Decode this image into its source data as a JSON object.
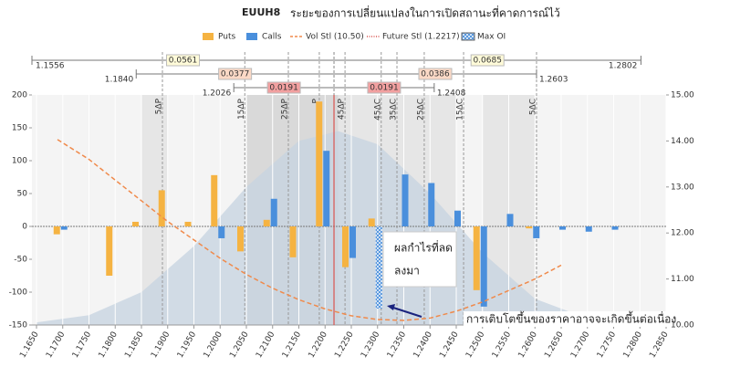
{
  "chart_data": {
    "type": "bar",
    "title": "EUUH8",
    "subtitle": "ระยะของการเปลี่ยนแปลงในการเปิดสถานะที่คาดการณ์ไว้",
    "x": [
      1.17,
      1.175,
      1.18,
      1.185,
      1.19,
      1.195,
      1.2,
      1.205,
      1.21,
      1.215,
      1.22,
      1.225,
      1.23,
      1.235,
      1.24,
      1.245,
      1.25,
      1.255,
      1.26,
      1.265,
      1.27,
      1.275
    ],
    "series": [
      {
        "name": "Puts",
        "color": "#f5b342",
        "values": [
          -12,
          null,
          -75,
          7,
          55,
          7,
          78,
          -38,
          10,
          -47,
          190,
          -62,
          12,
          null,
          null,
          null,
          -97,
          null,
          -3,
          null,
          null,
          null
        ]
      },
      {
        "name": "Calls",
        "color": "#4a8fdc",
        "values": [
          -5,
          null,
          null,
          null,
          null,
          null,
          -18,
          null,
          42,
          null,
          115,
          -48,
          -125,
          79,
          66,
          24,
          -122,
          19,
          -18,
          -5,
          -8,
          -5
        ]
      }
    ],
    "max_oi": {
      "name": "Max OI",
      "series": 1,
      "index": 12
    },
    "vol_line": {
      "name": "Vol Stl (10.50)",
      "color": "#f08a4b",
      "axis": "y2",
      "x": [
        1.169,
        1.175,
        1.18,
        1.185,
        1.19,
        1.195,
        1.2,
        1.205,
        1.21,
        1.215,
        1.22,
        1.225,
        1.23,
        1.235,
        1.24,
        1.245,
        1.25,
        1.255,
        1.26,
        1.265
      ],
      "values": [
        14.03,
        13.6,
        13.15,
        12.7,
        12.25,
        11.85,
        11.45,
        11.1,
        10.8,
        10.55,
        10.35,
        10.2,
        10.12,
        10.1,
        10.15,
        10.3,
        10.5,
        10.75,
        11.0,
        11.3
      ]
    },
    "future_line": {
      "name": "Future Stl (1.2217)",
      "value": 1.2217,
      "color": "#d9534f"
    },
    "distribution": {
      "color": "#c5d3e0",
      "x": [
        1.165,
        1.175,
        1.185,
        1.195,
        1.205,
        1.215,
        1.2225,
        1.23,
        1.24,
        1.25,
        1.26,
        1.27,
        1.28,
        1.285
      ],
      "values": [
        -146,
        -135,
        -100,
        -30,
        60,
        130,
        145,
        125,
        50,
        -40,
        -110,
        -140,
        -148,
        -150
      ]
    },
    "bands": [
      [
        1.185,
        1.19
      ],
      [
        1.205,
        1.2225
      ],
      [
        1.2225,
        1.245
      ],
      [
        1.25,
        1.26
      ]
    ],
    "delta_markers": [
      {
        "value": 1.189,
        "label": "5ΔP"
      },
      {
        "value": 1.2047,
        "label": "15ΔP"
      },
      {
        "value": 1.213,
        "label": "25ΔP"
      },
      {
        "value": 1.2189,
        "label": "P"
      },
      {
        "value": 1.2238,
        "label": "45ΔP"
      },
      {
        "value": 1.2307,
        "label": "45ΔC"
      },
      {
        "value": 1.2337,
        "label": "35ΔC"
      },
      {
        "value": 1.2389,
        "label": "25ΔC"
      },
      {
        "value": 1.2464,
        "label": "15ΔC"
      },
      {
        "value": 1.2603,
        "label": "5ΔC"
      }
    ],
    "ranges": [
      {
        "low": 1.1556,
        "low_width": 0.0561,
        "high_width": 0.0685,
        "high": 1.2802,
        "color": "#fffbd9"
      },
      {
        "low": {
          "value": 1.184,
          "label": "1.1840"
        },
        "low_width": 0.0377,
        "high_width": 0.0386,
        "high": 1.2603,
        "color": "#fbd9c6"
      },
      {
        "low": 1.2026,
        "low_width": 0.0191,
        "high_width": 0.0191,
        "high": 1.2408,
        "color": "#f2a0a0"
      }
    ],
    "annotations": [
      {
        "lines": [
          "ผลกำไรที่ลด",
          "ลงมา"
        ]
      },
      {
        "text": "การเติบโตขึ้นของราคาอาจจะเกิดขึ้นต่อเนื่อง"
      }
    ],
    "xlim": [
      1.165,
      1.285
    ],
    "xticks": [
      {
        "value": 1.165,
        "label": "1.1650"
      },
      {
        "value": 1.17,
        "label": "1.1700"
      },
      {
        "value": 1.175,
        "label": "1.1750"
      },
      {
        "value": 1.18,
        "label": "1.1800"
      },
      {
        "value": 1.185,
        "label": "1.1850"
      },
      {
        "value": 1.19,
        "label": "1.1900"
      },
      {
        "value": 1.195,
        "label": "1.1950"
      },
      {
        "value": 1.2,
        "label": "1.2000"
      },
      {
        "value": 1.205,
        "label": "1.2050"
      },
      {
        "value": 1.21,
        "label": "1.2100"
      },
      {
        "value": 1.215,
        "label": "1.2150"
      },
      {
        "value": 1.22,
        "label": "1.2200"
      },
      {
        "value": 1.225,
        "label": "1.2250"
      },
      {
        "value": 1.23,
        "label": "1.2300"
      },
      {
        "value": 1.235,
        "label": "1.2350"
      },
      {
        "value": 1.24,
        "label": "1.2400"
      },
      {
        "value": 1.245,
        "label": "1.2450"
      },
      {
        "value": 1.25,
        "label": "1.2500"
      },
      {
        "value": 1.255,
        "label": "1.2550"
      },
      {
        "value": 1.26,
        "label": "1.2600"
      },
      {
        "value": 1.265,
        "label": "1.2650"
      },
      {
        "value": 1.27,
        "label": "1.2700"
      },
      {
        "value": 1.275,
        "label": "1.2750"
      },
      {
        "value": 1.28,
        "label": "1.2800"
      },
      {
        "value": 1.285,
        "label": "1.2850"
      }
    ],
    "ylim": [
      -150,
      200
    ],
    "yticks": [
      -150,
      -100,
      -50,
      0,
      50,
      100,
      150,
      200
    ],
    "y2lim": [
      10,
      15
    ],
    "y2ticks": [
      {
        "value": 10,
        "label": "10.00"
      },
      {
        "value": 11,
        "label": "11.00"
      },
      {
        "value": 12,
        "label": "12.00"
      },
      {
        "value": 13,
        "label": "13.00"
      },
      {
        "value": 14,
        "label": "14.00"
      },
      {
        "value": 15,
        "label": "15.00"
      }
    ],
    "grid": true
  }
}
